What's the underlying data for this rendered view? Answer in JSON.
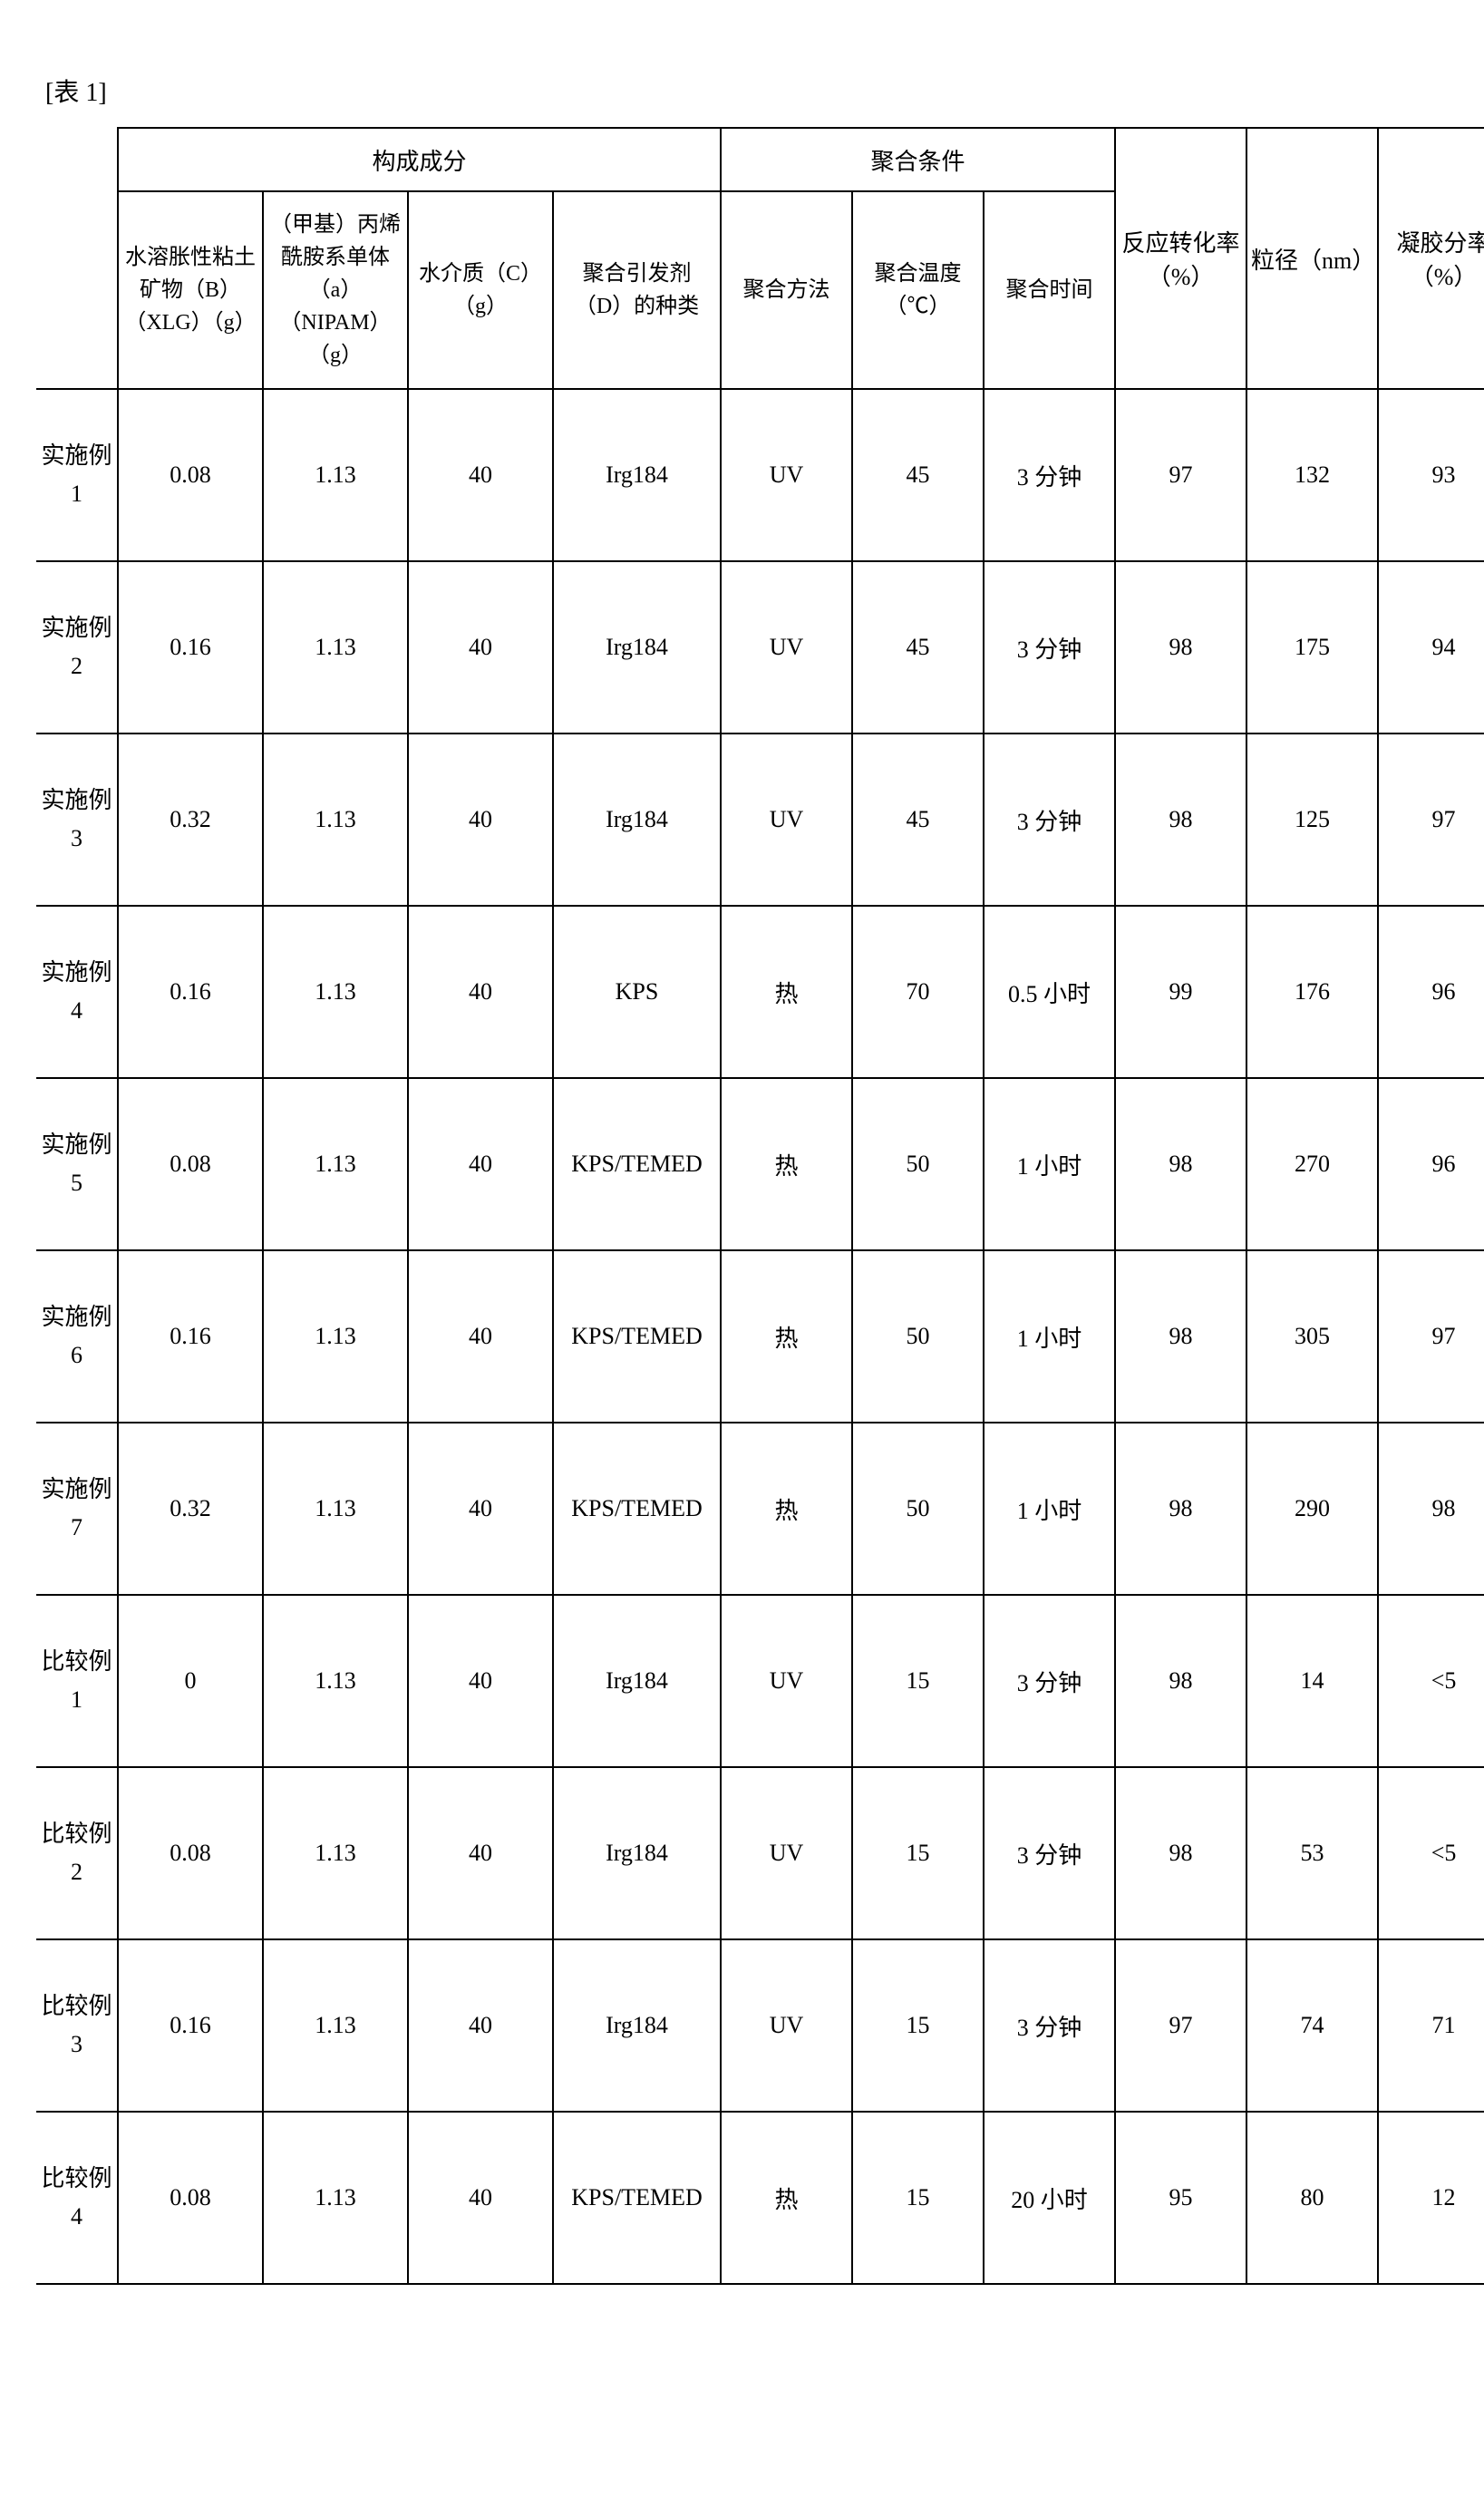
{
  "caption": "[表 1]",
  "headers": {
    "group_composition": "构成成分",
    "group_conditions": "聚合条件",
    "col_xlg": "水溶胀性粘土矿物（B）（XLG）（g）",
    "col_nipam": "（甲基）丙烯酰胺系单体（a）（NIPAM）（g）",
    "col_c": "水介质（C）（g）",
    "col_initiator": "聚合引发剂（D）的种类",
    "col_method": "聚合方法",
    "col_temp": "聚合温度（℃）",
    "col_time": "聚合时间",
    "col_conversion": "反应转化率（%）",
    "col_size": "粒径（nm）",
    "col_gel": "凝胶分率（%）"
  },
  "rows": [
    {
      "label_l1": "实施例",
      "label_l2": "1",
      "xlg": "0.08",
      "nipam": "1.13",
      "c": "40",
      "init": "Irg184",
      "method": "UV",
      "temp": "45",
      "time": "3 分钟",
      "conv": "97",
      "size": "132",
      "gel": "93"
    },
    {
      "label_l1": "实施例",
      "label_l2": "2",
      "xlg": "0.16",
      "nipam": "1.13",
      "c": "40",
      "init": "Irg184",
      "method": "UV",
      "temp": "45",
      "time": "3 分钟",
      "conv": "98",
      "size": "175",
      "gel": "94"
    },
    {
      "label_l1": "实施例",
      "label_l2": "3",
      "xlg": "0.32",
      "nipam": "1.13",
      "c": "40",
      "init": "Irg184",
      "method": "UV",
      "temp": "45",
      "time": "3 分钟",
      "conv": "98",
      "size": "125",
      "gel": "97"
    },
    {
      "label_l1": "实施例",
      "label_l2": "4",
      "xlg": "0.16",
      "nipam": "1.13",
      "c": "40",
      "init": "KPS",
      "method": "热",
      "temp": "70",
      "time": "0.5 小时",
      "conv": "99",
      "size": "176",
      "gel": "96"
    },
    {
      "label_l1": "实施例",
      "label_l2": "5",
      "xlg": "0.08",
      "nipam": "1.13",
      "c": "40",
      "init": "KPS/TEMED",
      "method": "热",
      "temp": "50",
      "time": "1 小时",
      "conv": "98",
      "size": "270",
      "gel": "96"
    },
    {
      "label_l1": "实施例",
      "label_l2": "6",
      "xlg": "0.16",
      "nipam": "1.13",
      "c": "40",
      "init": "KPS/TEMED",
      "method": "热",
      "temp": "50",
      "time": "1 小时",
      "conv": "98",
      "size": "305",
      "gel": "97"
    },
    {
      "label_l1": "实施例",
      "label_l2": "7",
      "xlg": "0.32",
      "nipam": "1.13",
      "c": "40",
      "init": "KPS/TEMED",
      "method": "热",
      "temp": "50",
      "time": "1 小时",
      "conv": "98",
      "size": "290",
      "gel": "98"
    },
    {
      "label_l1": "比较例",
      "label_l2": "1",
      "xlg": "0",
      "nipam": "1.13",
      "c": "40",
      "init": "Irg184",
      "method": "UV",
      "temp": "15",
      "time": "3 分钟",
      "conv": "98",
      "size": "14",
      "gel": "<5"
    },
    {
      "label_l1": "比较例",
      "label_l2": "2",
      "xlg": "0.08",
      "nipam": "1.13",
      "c": "40",
      "init": "Irg184",
      "method": "UV",
      "temp": "15",
      "time": "3 分钟",
      "conv": "98",
      "size": "53",
      "gel": "<5"
    },
    {
      "label_l1": "比较例",
      "label_l2": "3",
      "xlg": "0.16",
      "nipam": "1.13",
      "c": "40",
      "init": "Irg184",
      "method": "UV",
      "temp": "15",
      "time": "3 分钟",
      "conv": "97",
      "size": "74",
      "gel": "71"
    },
    {
      "label_l1": "比较例",
      "label_l2": "4",
      "xlg": "0.08",
      "nipam": "1.13",
      "c": "40",
      "init": "KPS/TEMED",
      "method": "热",
      "temp": "15",
      "time": "20 小时",
      "conv": "95",
      "size": "80",
      "gel": "12"
    }
  ]
}
